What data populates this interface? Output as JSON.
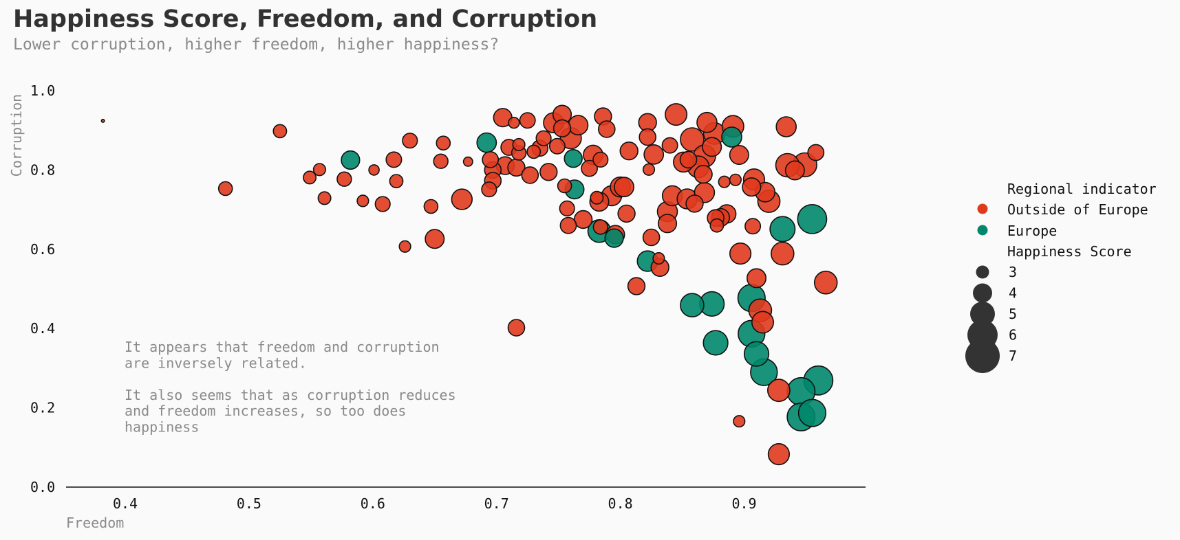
{
  "title": "Happiness Score, Freedom, and Corruption",
  "subtitle": "Lower corruption, higher freedom, higher happiness?",
  "annotation": [
    "It appears that freedom and corruption",
    "are inversely related.",
    "",
    "It also seems that as corruption reduces",
    "and freedom increases, so too does",
    "happiness"
  ],
  "colors": {
    "outside": "#e03a1e",
    "europe": "#00876c",
    "text": "#323232",
    "muted": "#8a8a8a",
    "background": "#fafafa"
  },
  "chart_data": {
    "type": "scatter",
    "title": "Happiness Score, Freedom, and Corruption",
    "subtitle": "Lower corruption, higher freedom, higher happiness?",
    "xlabel": "Freedom",
    "ylabel": "Corruption",
    "xlim": [
      0.35,
      1.0
    ],
    "ylim": [
      0.0,
      1.0
    ],
    "xticks": [
      "0.4",
      "0.5",
      "0.6",
      "0.7",
      "0.8",
      "0.9"
    ],
    "yticks": [
      "0.0",
      "0.2",
      "0.4",
      "0.6",
      "0.8",
      "1.0"
    ],
    "grid": false,
    "legend_placement": "right",
    "legend": {
      "hue_title": "Regional indicator",
      "hue_items": [
        "Outside of Europe",
        "Europe"
      ],
      "size_title": "Happiness Score",
      "size_items": [
        "3",
        "4",
        "5",
        "6",
        "7"
      ]
    },
    "series": [
      {
        "name": "Outside of Europe",
        "points": [
          [
            0.382,
            0.924,
            2.6
          ],
          [
            0.481,
            0.753,
            4.5
          ],
          [
            0.525,
            0.898,
            4.4
          ],
          [
            0.549,
            0.781,
            4.3
          ],
          [
            0.557,
            0.801,
            4.2
          ],
          [
            0.561,
            0.729,
            4.3
          ],
          [
            0.577,
            0.777,
            4.6
          ],
          [
            0.592,
            0.722,
            4.1
          ],
          [
            0.601,
            0.8,
            3.9
          ],
          [
            0.608,
            0.714,
            4.7
          ],
          [
            0.617,
            0.826,
            4.8
          ],
          [
            0.619,
            0.772,
            4.4
          ],
          [
            0.626,
            0.607,
            4.1
          ],
          [
            0.63,
            0.874,
            4.7
          ],
          [
            0.647,
            0.708,
            4.5
          ],
          [
            0.65,
            0.626,
            5.4
          ],
          [
            0.655,
            0.822,
            4.6
          ],
          [
            0.657,
            0.868,
            4.5
          ],
          [
            0.672,
            0.726,
            5.7
          ],
          [
            0.677,
            0.821,
            3.7
          ],
          [
            0.695,
            0.826,
            4.9
          ],
          [
            0.697,
            0.8,
            5.0
          ],
          [
            0.694,
            0.751,
            4.7
          ],
          [
            0.697,
            0.773,
            5.0
          ],
          [
            0.705,
            0.932,
            5.3
          ],
          [
            0.707,
            0.811,
            5.2
          ],
          [
            0.71,
            0.857,
            4.9
          ],
          [
            0.714,
            0.919,
            4.0
          ],
          [
            0.716,
            0.806,
            5.1
          ],
          [
            0.716,
            0.402,
            5.0
          ],
          [
            0.718,
            0.864,
            4.2
          ],
          [
            0.718,
            0.843,
            4.6
          ],
          [
            0.725,
            0.925,
            4.8
          ],
          [
            0.727,
            0.787,
            5.0
          ],
          [
            0.73,
            0.846,
            4.4
          ],
          [
            0.735,
            0.855,
            4.9
          ],
          [
            0.738,
            0.88,
            4.7
          ],
          [
            0.742,
            0.795,
            5.1
          ],
          [
            0.746,
            0.919,
            5.6
          ],
          [
            0.749,
            0.86,
            4.8
          ],
          [
            0.753,
            0.94,
            5.3
          ],
          [
            0.753,
            0.905,
            5.1
          ],
          [
            0.755,
            0.76,
            4.5
          ],
          [
            0.757,
            0.703,
            4.7
          ],
          [
            0.758,
            0.66,
            4.9
          ],
          [
            0.76,
            0.88,
            5.8
          ],
          [
            0.766,
            0.913,
            5.5
          ],
          [
            0.77,
            0.675,
            5.2
          ],
          [
            0.775,
            0.804,
            4.9
          ],
          [
            0.778,
            0.838,
            5.5
          ],
          [
            0.781,
            0.73,
            4.3
          ],
          [
            0.783,
            0.72,
            5.4
          ],
          [
            0.784,
            0.826,
            4.7
          ],
          [
            0.784,
            0.656,
            4.6
          ],
          [
            0.786,
            0.935,
            5.1
          ],
          [
            0.789,
            0.903,
            5.0
          ],
          [
            0.793,
            0.735,
            5.6
          ],
          [
            0.796,
            0.637,
            5.3
          ],
          [
            0.8,
            0.757,
            5.6
          ],
          [
            0.803,
            0.757,
            5.5
          ],
          [
            0.805,
            0.69,
            5.1
          ],
          [
            0.807,
            0.848,
            5.2
          ],
          [
            0.813,
            0.507,
            5.1
          ],
          [
            0.822,
            0.92,
            5.2
          ],
          [
            0.822,
            0.883,
            5.0
          ],
          [
            0.823,
            0.801,
            4.1
          ],
          [
            0.825,
            0.63,
            5.0
          ],
          [
            0.827,
            0.839,
            5.5
          ],
          [
            0.831,
            0.577,
            4.1
          ],
          [
            0.832,
            0.554,
            5.2
          ],
          [
            0.838,
            0.695,
            5.6
          ],
          [
            0.838,
            0.665,
            5.3
          ],
          [
            0.84,
            0.862,
            4.8
          ],
          [
            0.842,
            0.735,
            5.6
          ],
          [
            0.845,
            0.94,
            5.9
          ],
          [
            0.851,
            0.82,
            5.6
          ],
          [
            0.854,
            0.727,
            5.6
          ],
          [
            0.855,
            0.826,
            5.0
          ],
          [
            0.858,
            0.877,
            6.2
          ],
          [
            0.86,
            0.715,
            5.1
          ],
          [
            0.863,
            0.808,
            5.9
          ],
          [
            0.867,
            0.789,
            5.2
          ],
          [
            0.868,
            0.835,
            6.0
          ],
          [
            0.868,
            0.743,
            5.6
          ],
          [
            0.87,
            0.92,
            5.6
          ],
          [
            0.874,
            0.858,
            5.4
          ],
          [
            0.876,
            0.892,
            5.9
          ],
          [
            0.877,
            0.679,
            5.0
          ],
          [
            0.878,
            0.66,
            4.4
          ],
          [
            0.881,
            0.68,
            5.2
          ],
          [
            0.884,
            0.77,
            4.1
          ],
          [
            0.886,
            0.689,
            5.3
          ],
          [
            0.891,
            0.91,
            5.9
          ],
          [
            0.893,
            0.775,
            4.1
          ],
          [
            0.896,
            0.838,
            5.4
          ],
          [
            0.896,
            0.166,
            4.1
          ],
          [
            0.897,
            0.589,
            5.8
          ],
          [
            0.906,
            0.757,
            5.3
          ],
          [
            0.907,
            0.658,
            4.8
          ],
          [
            0.908,
            0.776,
            5.8
          ],
          [
            0.91,
            0.527,
            5.4
          ],
          [
            0.913,
            0.446,
            6.1
          ],
          [
            0.915,
            0.416,
            5.9
          ],
          [
            0.917,
            0.744,
            5.5
          ],
          [
            0.92,
            0.721,
            6.0
          ],
          [
            0.928,
            0.083,
            5.8
          ],
          [
            0.928,
            0.244,
            6.0
          ],
          [
            0.931,
            0.589,
            6.1
          ],
          [
            0.934,
            0.909,
            5.6
          ],
          [
            0.935,
            0.812,
            6.2
          ],
          [
            0.941,
            0.799,
            5.4
          ],
          [
            0.949,
            0.813,
            6.3
          ],
          [
            0.958,
            0.844,
            4.9
          ],
          [
            0.966,
            0.516,
            6.1
          ]
        ]
      },
      {
        "name": "Europe",
        "points": [
          [
            0.582,
            0.825,
            5.3
          ],
          [
            0.692,
            0.869,
            5.5
          ],
          [
            0.762,
            0.829,
            5.2
          ],
          [
            0.763,
            0.751,
            5.4
          ],
          [
            0.783,
            0.646,
            6.1
          ],
          [
            0.795,
            0.628,
            5.3
          ],
          [
            0.822,
            0.57,
            5.7
          ],
          [
            0.858,
            0.459,
            6.2
          ],
          [
            0.874,
            0.462,
            6.4
          ],
          [
            0.877,
            0.364,
            6.4
          ],
          [
            0.89,
            0.883,
            5.6
          ],
          [
            0.906,
            0.477,
            6.9
          ],
          [
            0.906,
            0.387,
            6.8
          ],
          [
            0.91,
            0.336,
            6.4
          ],
          [
            0.916,
            0.29,
            6.8
          ],
          [
            0.931,
            0.651,
            6.5
          ],
          [
            0.946,
            0.241,
            7.0
          ],
          [
            0.946,
            0.177,
            7.0
          ],
          [
            0.955,
            0.676,
            7.2
          ],
          [
            0.955,
            0.187,
            6.9
          ],
          [
            0.96,
            0.269,
            7.2
          ]
        ]
      }
    ]
  }
}
